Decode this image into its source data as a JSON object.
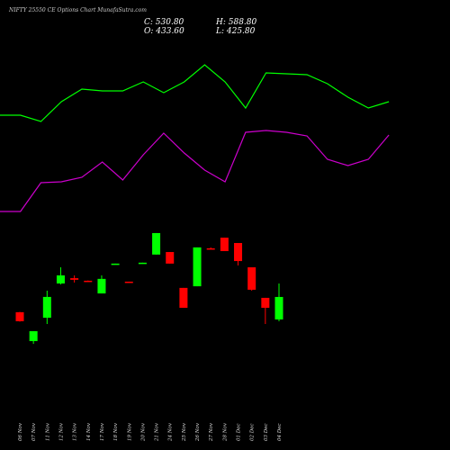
{
  "chart_data": {
    "type": "candlestick",
    "title": "NIFTY 25550 CE Options Chart MunafaSutra.com",
    "header": {
      "close": "C: 530.80",
      "high": "H: 588.80",
      "open": "O: 433.60",
      "low": "L: 425.80"
    },
    "categories": [
      "06 Nov",
      "07 Nov",
      "11 Nov",
      "12 Nov",
      "13 Nov",
      "14 Nov",
      "17 Nov",
      "18 Nov",
      "19 Nov",
      "20 Nov",
      "21 Nov",
      "24 Nov",
      "25 Nov",
      "26 Nov",
      "27 Nov",
      "28 Nov",
      "01 Dec",
      "02 Dec",
      "03 Dec",
      "04 Dec"
    ],
    "open": [
      465,
      340,
      441,
      589,
      612,
      601,
      546,
      671,
      597,
      675,
      714,
      725,
      570,
      577,
      741,
      787,
      764,
      659,
      527,
      433.6
    ],
    "high": [
      466,
      383,
      558,
      659,
      624,
      602,
      624,
      675,
      597,
      679,
      807,
      725,
      570,
      745,
      745,
      787,
      764,
      659,
      527,
      588.8
    ],
    "low": [
      424,
      328,
      414,
      585,
      593,
      598,
      546,
      671,
      593,
      675,
      714,
      675,
      484,
      577,
      737,
      729,
      667,
      558,
      414,
      425.8
    ],
    "close": [
      426,
      383,
      531,
      624,
      605,
      600,
      609,
      675,
      593,
      679,
      807,
      675,
      484,
      745,
      737,
      729,
      686,
      562,
      484,
      530.8
    ],
    "up_color": "#00ff00",
    "down_color": "#ff0000",
    "lines": [
      {
        "color": "#00ff00",
        "values": [
          372,
          372,
          365,
          387,
          401,
          399,
          399,
          409,
          397,
          409,
          428,
          409,
          380,
          419,
          418,
          417,
          407,
          392,
          380,
          387
        ]
      },
      {
        "color": "#cc00cc",
        "values": [
          265,
          265,
          297,
          298,
          303,
          320,
          300,
          328,
          352,
          330,
          311,
          298,
          353,
          355,
          353,
          349,
          323,
          316,
          323,
          350
        ]
      }
    ]
  }
}
